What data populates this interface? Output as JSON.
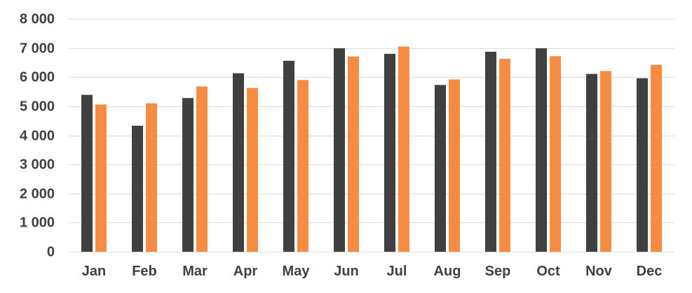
{
  "chart_data": {
    "type": "bar",
    "title": "",
    "xlabel": "",
    "ylabel": "",
    "categories": [
      "Jan",
      "Feb",
      "Mar",
      "Apr",
      "May",
      "Jun",
      "Jul",
      "Aug",
      "Sep",
      "Oct",
      "Nov",
      "Dec"
    ],
    "series": [
      {
        "color": "#404040",
        "values": [
          5390,
          4330,
          5280,
          6130,
          6560,
          6990,
          6800,
          5730,
          6870,
          6990,
          6110,
          5960
        ]
      },
      {
        "color": "#F58C42",
        "values": [
          5060,
          5100,
          5680,
          5630,
          5900,
          6710,
          7050,
          5920,
          6630,
          6720,
          6210,
          6420
        ]
      }
    ],
    "ylim": [
      0,
      8000
    ],
    "yticks": [
      0,
      1000,
      2000,
      3000,
      4000,
      5000,
      6000,
      7000,
      8000
    ],
    "ytick_labels": [
      "0",
      "1 000",
      "2 000",
      "3 000",
      "4 000",
      "5 000",
      "6 000",
      "7 000",
      "8 000"
    ],
    "grid": true,
    "legend": "none"
  },
  "colors": {
    "gridline": "#D9D9D9",
    "text": "#404040",
    "background": "#FFFFFF"
  }
}
